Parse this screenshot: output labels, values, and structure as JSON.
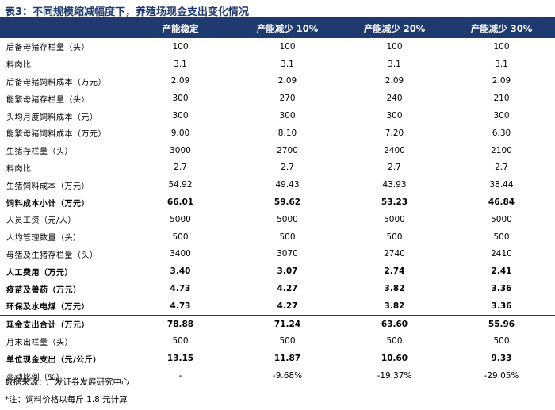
{
  "title": "表3：不同规模缩减幅度下，养殖场现金支出变化情况",
  "headers": [
    "",
    "产能稳定",
    "产能减少 10%",
    "产能减少 20%",
    "产能减少 30%"
  ],
  "rows": [
    {
      "label": "后备母猪存栏量（头）",
      "values": [
        "100",
        "100",
        "100",
        "100"
      ],
      "bold": false
    },
    {
      "label": "料肉比",
      "values": [
        "3.1",
        "3.1",
        "3.1",
        "3.1"
      ],
      "bold": false
    },
    {
      "label": "后备母猪饲料成本（万元）",
      "values": [
        "2.09",
        "2.09",
        "2.09",
        "2.09"
      ],
      "bold": false
    },
    {
      "label": "能繁母猪存栏量（头）",
      "values": [
        "300",
        "270",
        "240",
        "210"
      ],
      "bold": false
    },
    {
      "label": "头均月度饲料成本（元）",
      "values": [
        "300",
        "300",
        "300",
        "300"
      ],
      "bold": false
    },
    {
      "label": "能繁母猪饲料成本（万元）",
      "values": [
        "9.00",
        "8.10",
        "7.20",
        "6.30"
      ],
      "bold": false
    },
    {
      "label": "生猪存栏量（头）",
      "values": [
        "3000",
        "2700",
        "2400",
        "2100"
      ],
      "bold": false
    },
    {
      "label": "料肉比",
      "values": [
        "2.7",
        "2.7",
        "2.7",
        "2.7"
      ],
      "bold": false
    },
    {
      "label": "生猪饲料成本（万元）",
      "values": [
        "54.92",
        "49.43",
        "43.93",
        "38.44"
      ],
      "bold": false
    },
    {
      "label": "饲料成本小计（万元）",
      "values": [
        "66.01",
        "59.62",
        "53.23",
        "46.84"
      ],
      "bold": true
    },
    {
      "label": "人员工资（元/人）",
      "values": [
        "5000",
        "5000",
        "5000",
        "5000"
      ],
      "bold": false
    },
    {
      "label": "人均管理数量（头）",
      "values": [
        "500",
        "500",
        "500",
        "500"
      ],
      "bold": false
    },
    {
      "label": "母猪及生猪存栏量（头）",
      "values": [
        "3400",
        "3070",
        "2740",
        "2410"
      ],
      "bold": false
    },
    {
      "label": "人工费用（万元）",
      "values": [
        "3.40",
        "3.07",
        "2.74",
        "2.41"
      ],
      "bold": true
    },
    {
      "label": "疫苗及兽药（万元）",
      "values": [
        "4.73",
        "4.27",
        "3.82",
        "3.36"
      ],
      "bold": true
    },
    {
      "label": "环保及水电煤（万元）",
      "values": [
        "4.73",
        "4.27",
        "3.82",
        "3.36"
      ],
      "bold": true
    },
    {
      "label": "现金支出合计（万元）",
      "values": [
        "78.88",
        "71.24",
        "63.60",
        "55.96"
      ],
      "bold": true,
      "sep": true
    },
    {
      "label": "月末出栏量（头）",
      "values": [
        "500",
        "500",
        "500",
        "500"
      ],
      "bold": false
    },
    {
      "label": "单位现金支出（元/公斤）",
      "values": [
        "13.15",
        "11.87",
        "10.60",
        "9.33"
      ],
      "bold": true
    },
    {
      "label": "变动比例（%）",
      "values": [
        "-",
        "-9.68%",
        "-19.37%",
        "-29.05%"
      ],
      "bold": false,
      "last": true
    }
  ],
  "source": "数据来源：广发证券发展研究中心",
  "note": "*注：饲料价格以每斤 1.8 元计算"
}
